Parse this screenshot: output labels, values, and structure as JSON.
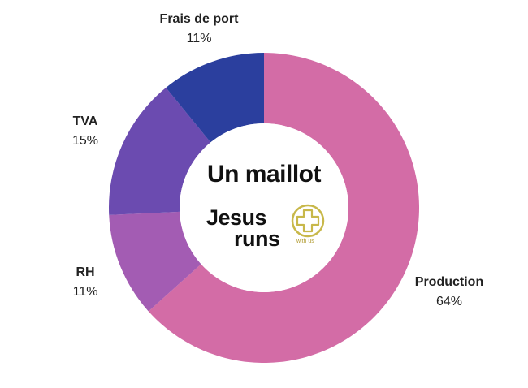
{
  "chart_data": {
    "type": "pie",
    "donut": true,
    "title": "Un maillot",
    "slices": [
      {
        "label": "Production",
        "value": 64,
        "pct_label": "64%",
        "color": "#d36ca6"
      },
      {
        "label": "RH",
        "value": 11,
        "pct_label": "11%",
        "color": "#a35cb3"
      },
      {
        "label": "TVA",
        "value": 15,
        "pct_label": "15%",
        "color": "#6b4bb0"
      },
      {
        "label": "Frais de port",
        "value": 11,
        "pct_label": "11%",
        "color": "#2b3f9e"
      }
    ]
  },
  "logo": {
    "word1": "Jesus",
    "word2": "runs",
    "tagline": "with us",
    "icon": "plus-circle-icon",
    "color": "#c8b84a"
  }
}
